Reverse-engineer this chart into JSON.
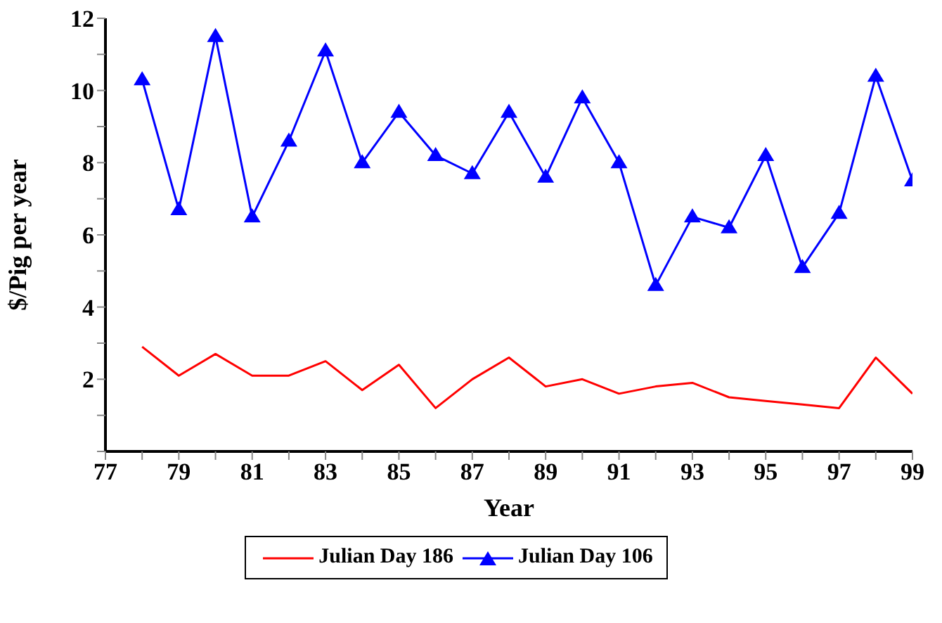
{
  "chart_data": {
    "type": "line",
    "xlabel": "Year",
    "ylabel": "$/Pig per year",
    "x": [
      78,
      79,
      80,
      81,
      82,
      83,
      84,
      85,
      86,
      87,
      88,
      89,
      90,
      91,
      92,
      93,
      94,
      95,
      96,
      97,
      98,
      99
    ],
    "series": [
      {
        "name": "Julian Day 186",
        "color": "#ff0000",
        "marker": "none",
        "values": [
          2.9,
          2.1,
          2.7,
          2.1,
          2.1,
          2.5,
          1.7,
          2.4,
          1.2,
          2.0,
          2.6,
          1.8,
          2.0,
          1.6,
          1.8,
          1.9,
          1.5,
          1.4,
          1.3,
          1.2,
          2.6,
          1.6
        ]
      },
      {
        "name": "Julian Day 106",
        "color": "#0000ff",
        "marker": "triangle",
        "values": [
          10.3,
          6.7,
          11.5,
          6.5,
          8.6,
          11.1,
          8.0,
          9.4,
          8.2,
          7.7,
          9.4,
          7.6,
          9.8,
          8.0,
          4.6,
          6.5,
          6.2,
          8.2,
          5.1,
          6.6,
          10.4,
          7.5
        ]
      }
    ],
    "xlim": [
      77,
      99
    ],
    "xticks": [
      77,
      {
        "value": 78,
        "label": null
      },
      79,
      {
        "value": 80,
        "label": null
      },
      81,
      {
        "value": 82,
        "label": null
      },
      83,
      {
        "value": 84,
        "label": null
      },
      85,
      {
        "value": 86,
        "label": null
      },
      87,
      {
        "value": 88,
        "label": null
      },
      89,
      {
        "value": 90,
        "label": null
      },
      91,
      {
        "value": 92,
        "label": null
      },
      93,
      {
        "value": 94,
        "label": null
      },
      95,
      {
        "value": 96,
        "label": null
      },
      97,
      {
        "value": 98,
        "label": null
      },
      99
    ],
    "ylim": [
      0,
      12
    ],
    "yticks": [
      {
        "value": 0,
        "label": null
      },
      {
        "value": 1,
        "label": null
      },
      2,
      {
        "value": 3,
        "label": null
      },
      4,
      {
        "value": 5,
        "label": null
      },
      6,
      {
        "value": 7,
        "label": null
      },
      8,
      {
        "value": 9,
        "label": null
      },
      10,
      {
        "value": 11,
        "label": null
      },
      12
    ],
    "grid": false,
    "legend": "bottom"
  }
}
